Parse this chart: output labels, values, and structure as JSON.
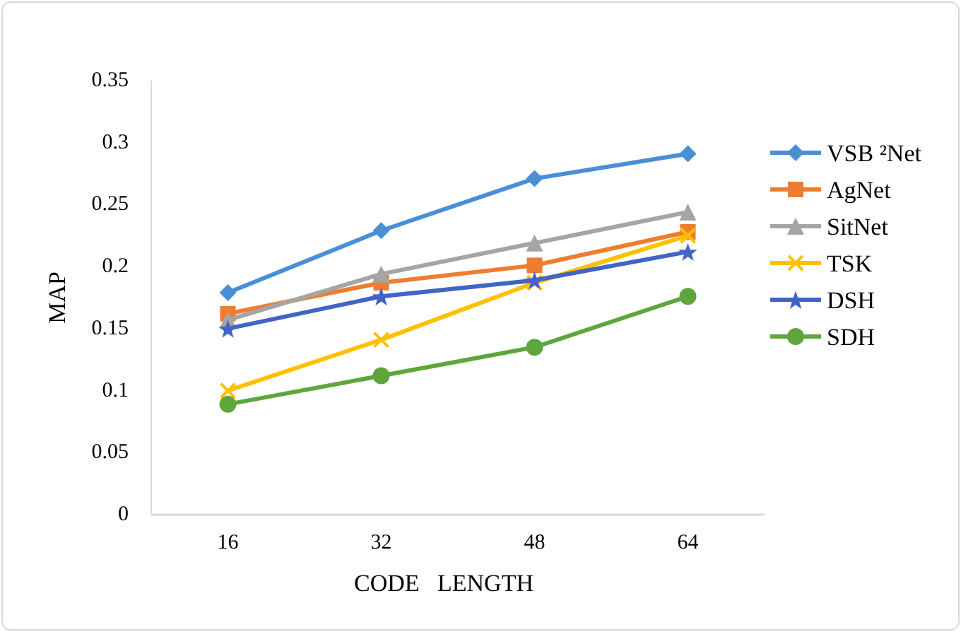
{
  "chart_data": {
    "type": "line",
    "xlabel": "CODE   LENGTH",
    "ylabel": "MAP",
    "categories": [
      "16",
      "32",
      "48",
      "64"
    ],
    "ylim": [
      0,
      0.35
    ],
    "yticks": [
      {
        "value": 0,
        "label": "0"
      },
      {
        "value": 0.05,
        "label": "0.05"
      },
      {
        "value": 0.1,
        "label": "0.1"
      },
      {
        "value": 0.15,
        "label": "0.15"
      },
      {
        "value": 0.2,
        "label": "0.2"
      },
      {
        "value": 0.25,
        "label": "0.25"
      },
      {
        "value": 0.3,
        "label": "0.3"
      },
      {
        "value": 0.35,
        "label": "0.35"
      }
    ],
    "grid": false,
    "legend": "right",
    "line_style": "solid",
    "series": [
      {
        "name": "VSB ²Net",
        "color": "#4a8fd6",
        "marker": "diamond",
        "values": [
          0.179,
          0.229,
          0.271,
          0.291
        ]
      },
      {
        "name": "AgNet",
        "color": "#ed7d31",
        "marker": "square",
        "values": [
          0.162,
          0.187,
          0.201,
          0.228
        ]
      },
      {
        "name": "SitNet",
        "color": "#a5a5a5",
        "marker": "triangle",
        "values": [
          0.157,
          0.194,
          0.219,
          0.244
        ]
      },
      {
        "name": "TSK",
        "color": "#ffc000",
        "marker": "cross",
        "values": [
          0.1,
          0.141,
          0.187,
          0.225
        ]
      },
      {
        "name": "DSH",
        "color": "#4265c4",
        "marker": "star",
        "values": [
          0.15,
          0.176,
          0.189,
          0.212
        ]
      },
      {
        "name": "SDH",
        "color": "#5ea63c",
        "marker": "circle",
        "values": [
          0.089,
          0.112,
          0.135,
          0.176
        ]
      }
    ]
  }
}
